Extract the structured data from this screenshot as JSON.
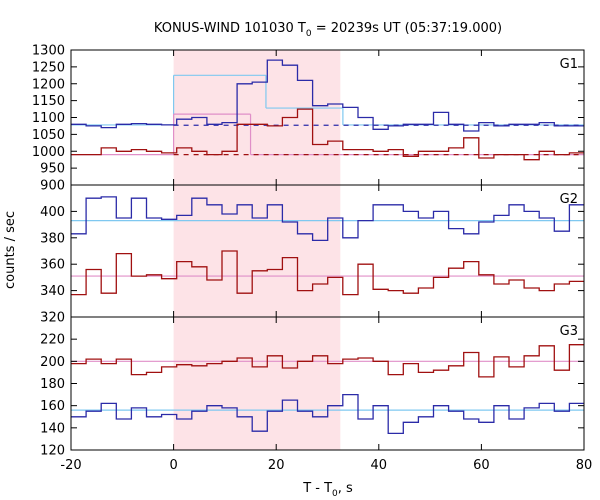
{
  "title_main": "KONUS-WIND 101030 T",
  "title_sub": "0",
  "title_rest": " = 20239s UT (05:37:19.000)",
  "xlabel_main": "T - T",
  "xlabel_sub": "0",
  "xlabel_rest": ", s",
  "ylabel": "counts / sec",
  "colors": {
    "blue": "#2b2ba8",
    "red": "#a01010",
    "light_blue": "#7fc8f0",
    "pink": "#e08fc8",
    "shade": "#fde3e7"
  },
  "chart_data": {
    "type": "line",
    "x_range": [
      -20,
      80
    ],
    "x_ticks": [
      -20,
      0,
      20,
      40,
      60,
      80
    ],
    "x_tick_labels": [
      "-20",
      "0",
      "20",
      "40",
      "60",
      "80"
    ],
    "shaded_interval": [
      0,
      32.5
    ],
    "panels": [
      {
        "name": "G1",
        "ylim": [
          900,
          1300
        ],
        "y_ticks": [
          900,
          950,
          1000,
          1050,
          1100,
          1150,
          1200,
          1250,
          1300
        ],
        "y_tick_labels": [
          "900",
          "950",
          "1000",
          "1050",
          "1100",
          "1150",
          "1200",
          "1250",
          "1300"
        ],
        "bin_start": -20,
        "bin_width": 2.944,
        "series": [
          {
            "color": "blue",
            "values": [
              1080,
              1075,
              1070,
              1080,
              1082,
              1080,
              1078,
              1095,
              1100,
              1080,
              1085,
              1200,
              1205,
              1270,
              1255,
              1210,
              1135,
              1140,
              1130,
              1100,
              1065,
              1075,
              1080,
              1080,
              1115,
              1080,
              1060,
              1085,
              1075,
              1080,
              1080,
              1085,
              1075,
              1075
            ]
          },
          {
            "color": "red",
            "values": [
              990,
              990,
              1010,
              1000,
              1005,
              1000,
              995,
              1010,
              1000,
              990,
              1000,
              1080,
              1080,
              1075,
              1100,
              1125,
              1020,
              1030,
              1005,
              1005,
              1000,
              1005,
              985,
              1000,
              1000,
              1010,
              1040,
              980,
              990,
              990,
              975,
              1000,
              990,
              995
            ]
          }
        ],
        "model_lines": [
          {
            "color": "light_blue",
            "style": "solid",
            "segments": [
              [
                -20,
                0,
                1078
              ],
              [
                0,
                18,
                1225
              ],
              [
                18,
                33,
                1128
              ],
              [
                33,
                80,
                1078
              ]
            ]
          },
          {
            "color": "pink",
            "style": "solid",
            "segments": [
              [
                -20,
                0,
                990
              ],
              [
                0,
                15,
                1110
              ],
              [
                15,
                33,
                990
              ],
              [
                33,
                80,
                990
              ]
            ]
          },
          {
            "color": "blue",
            "style": "dashed",
            "segments": [
              [
                0,
                80,
                1077
              ]
            ]
          },
          {
            "color": "red",
            "style": "dashed",
            "segments": [
              [
                0,
                80,
                990
              ]
            ]
          }
        ]
      },
      {
        "name": "G2",
        "ylim": [
          320,
          420
        ],
        "y_ticks": [
          320,
          340,
          360,
          380,
          400
        ],
        "y_tick_labels": [
          "320",
          "340",
          "360",
          "380",
          "400"
        ],
        "bin_start": -20,
        "bin_width": 2.944,
        "series": [
          {
            "color": "blue",
            "values": [
              383,
              410,
              411,
              395,
              410,
              395,
              394,
              397,
              410,
              405,
              398,
              405,
              395,
              405,
              392,
              383,
              378,
              395,
              380,
              393,
              405,
              405,
              400,
              395,
              400,
              387,
              383,
              392,
              397,
              405,
              400,
              395,
              385,
              405
            ]
          },
          {
            "color": "red",
            "values": [
              337,
              356,
              338,
              368,
              351,
              352,
              349,
              362,
              358,
              348,
              370,
              338,
              355,
              356,
              365,
              340,
              345,
              350,
              337,
              360,
              341,
              340,
              338,
              342,
              350,
              357,
              362,
              352,
              345,
              348,
              342,
              340,
              345,
              347
            ]
          }
        ],
        "model_lines": [
          {
            "color": "light_blue",
            "style": "solid",
            "segments": [
              [
                -20,
                80,
                393
              ]
            ]
          },
          {
            "color": "pink",
            "style": "solid",
            "segments": [
              [
                -20,
                80,
                351
              ]
            ]
          }
        ]
      },
      {
        "name": "G3",
        "ylim": [
          120,
          240
        ],
        "y_ticks": [
          120,
          140,
          160,
          180,
          200,
          220
        ],
        "y_tick_labels": [
          "120",
          "140",
          "160",
          "180",
          "200",
          "220"
        ],
        "bin_start": -20,
        "bin_width": 2.944,
        "series": [
          {
            "color": "red",
            "values": [
              198,
              202,
              198,
              202,
              188,
              190,
              195,
              197,
              196,
              198,
              200,
              203,
              195,
              205,
              194,
              200,
              205,
              198,
              202,
              203,
              200,
              188,
              198,
              190,
              192,
              196,
              208,
              186,
              204,
              195,
              205,
              214,
              192,
              215
            ]
          },
          {
            "color": "blue",
            "values": [
              150,
              155,
              162,
              148,
              158,
              150,
              152,
              148,
              155,
              160,
              158,
              150,
              137,
              155,
              165,
              155,
              150,
              160,
              170,
              148,
              160,
              135,
              145,
              150,
              160,
              155,
              148,
              145,
              160,
              148,
              158,
              162,
              155,
              162
            ]
          }
        ],
        "model_lines": [
          {
            "color": "light_blue",
            "style": "solid",
            "segments": [
              [
                -20,
                80,
                156
              ]
            ]
          },
          {
            "color": "pink",
            "style": "solid",
            "segments": [
              [
                -20,
                80,
                200
              ]
            ]
          }
        ]
      }
    ]
  }
}
